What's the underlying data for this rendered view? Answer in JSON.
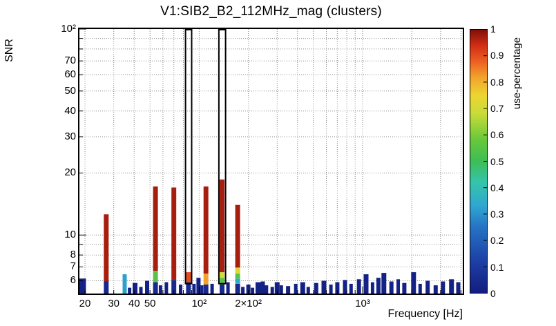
{
  "title": "V1:SIB2_B2_112MHz_mag (clusters)",
  "axes": {
    "x_label": "Frequency [Hz]",
    "y_label": "SNR"
  },
  "colorbar": {
    "label": "use-percentage",
    "min": 0,
    "max": 1,
    "tick_labels": [
      "0",
      "0.1",
      "0.2",
      "0.3",
      "0.4",
      "0.5",
      "0.6",
      "0.7",
      "0.8",
      "0.9",
      "1"
    ]
  },
  "chart_data": {
    "type": "bar",
    "title": "V1:SIB2_B2_112MHz_mag (clusters)",
    "xlabel": "Frequency [Hz]",
    "ylabel": "SNR",
    "zlabel": "use-percentage",
    "x_scale": "log",
    "y_scale": "log",
    "xlim": [
      18.5,
      4100
    ],
    "ylim": [
      5.2,
      100
    ],
    "grid": true,
    "x_ticks": [
      {
        "v": 20,
        "label": "20"
      },
      {
        "v": 30,
        "label": "30"
      },
      {
        "v": 40,
        "label": "40"
      },
      {
        "v": 50,
        "label": "50"
      },
      {
        "v": 100,
        "label": "10²"
      },
      {
        "v": 200,
        "label": "2×10²"
      },
      {
        "v": 1000,
        "label": "10³"
      }
    ],
    "y_ticks": [
      {
        "v": 6,
        "label": "6"
      },
      {
        "v": 7,
        "label": "7"
      },
      {
        "v": 8,
        "label": "8"
      },
      {
        "v": 10,
        "label": "10"
      },
      {
        "v": 20,
        "label": "20"
      },
      {
        "v": 30,
        "label": "30"
      },
      {
        "v": 40,
        "label": "40"
      },
      {
        "v": 50,
        "label": "50"
      },
      {
        "v": 60,
        "label": "60"
      },
      {
        "v": 70,
        "label": "70"
      },
      {
        "v": 100,
        "label": "10²"
      }
    ],
    "grid_x": [
      20,
      30,
      40,
      50,
      60,
      70,
      80,
      90,
      100,
      200,
      300,
      400,
      500,
      600,
      700,
      800,
      900,
      1000,
      2000,
      3000,
      4000
    ],
    "grid_y": [
      6,
      7,
      8,
      9,
      10,
      20,
      30,
      40,
      50,
      60,
      70,
      80,
      90,
      100
    ],
    "palette": [
      {
        "v": 0.0,
        "c": "#131c7f"
      },
      {
        "v": 0.12,
        "c": "#1d3fa5"
      },
      {
        "v": 0.25,
        "c": "#2673c4"
      },
      {
        "v": 0.33,
        "c": "#2fa6cf"
      },
      {
        "v": 0.42,
        "c": "#36c4ab"
      },
      {
        "v": 0.5,
        "c": "#3dbe56"
      },
      {
        "v": 0.58,
        "c": "#67c73b"
      },
      {
        "v": 0.68,
        "c": "#c8dc38"
      },
      {
        "v": 0.75,
        "c": "#edd531"
      },
      {
        "v": 0.82,
        "c": "#f2a12c"
      },
      {
        "v": 0.88,
        "c": "#ec5e21"
      },
      {
        "v": 0.94,
        "c": "#d02d14"
      },
      {
        "v": 1.0,
        "c": "#7d0e07"
      }
    ],
    "outlined_boxes": [
      {
        "f0": 82.5,
        "f1": 90,
        "snr0": 5.85,
        "snr1": 100
      },
      {
        "f0": 132,
        "f1": 145,
        "snr0": 5.85,
        "snr1": 100
      }
    ],
    "clusters": [
      {
        "f": 19.3,
        "w": 10,
        "segments": [
          {
            "snr0": 5.2,
            "snr1": 6.15,
            "use": 0.02
          }
        ]
      },
      {
        "f": 27,
        "w": 7,
        "segments": [
          {
            "snr0": 5.2,
            "snr1": 5.95,
            "use": 0.04
          },
          {
            "snr0": 5.95,
            "snr1": 12.6,
            "use": 0.97
          }
        ]
      },
      {
        "f": 35,
        "w": 6,
        "segments": [
          {
            "snr0": 5.2,
            "snr1": 6.45,
            "use": 0.32
          }
        ]
      },
      {
        "f": 37.5,
        "w": 5,
        "segments": [
          {
            "snr0": 5.2,
            "snr1": 5.55,
            "use": 0.02
          }
        ]
      },
      {
        "f": 40.5,
        "w": 7,
        "segments": [
          {
            "snr0": 5.2,
            "snr1": 5.85,
            "use": 0.02
          }
        ]
      },
      {
        "f": 44,
        "w": 5,
        "segments": [
          {
            "snr0": 5.2,
            "snr1": 5.6,
            "use": 0.02
          }
        ]
      },
      {
        "f": 48,
        "w": 6,
        "segments": [
          {
            "snr0": 5.2,
            "snr1": 6.0,
            "use": 0.02
          }
        ]
      },
      {
        "f": 54,
        "w": 7,
        "segments": [
          {
            "snr0": 5.2,
            "snr1": 5.9,
            "use": 0.05
          },
          {
            "snr0": 5.9,
            "snr1": 6.7,
            "use": 0.55
          },
          {
            "snr0": 6.7,
            "snr1": 17.2,
            "use": 0.97
          }
        ]
      },
      {
        "f": 58,
        "w": 5,
        "segments": [
          {
            "snr0": 5.2,
            "snr1": 5.7,
            "use": 0.02
          }
        ]
      },
      {
        "f": 63,
        "w": 5,
        "segments": [
          {
            "snr0": 5.2,
            "snr1": 5.9,
            "use": 0.02
          }
        ]
      },
      {
        "f": 70,
        "w": 7,
        "segments": [
          {
            "snr0": 5.2,
            "snr1": 6.05,
            "use": 0.05
          },
          {
            "snr0": 6.05,
            "snr1": 17.0,
            "use": 0.97
          }
        ]
      },
      {
        "f": 77,
        "w": 5,
        "segments": [
          {
            "snr0": 5.2,
            "snr1": 5.75,
            "use": 0.02
          }
        ]
      },
      {
        "f": 86,
        "w": 7,
        "segments": [
          {
            "snr0": 5.2,
            "snr1": 5.9,
            "use": 0.05
          },
          {
            "snr0": 5.9,
            "snr1": 6.6,
            "use": 0.9
          }
        ]
      },
      {
        "f": 93,
        "w": 5,
        "segments": [
          {
            "snr0": 5.2,
            "snr1": 5.8,
            "use": 0.02
          }
        ]
      },
      {
        "f": 99,
        "w": 6,
        "segments": [
          {
            "snr0": 5.2,
            "snr1": 6.2,
            "use": 0.02
          }
        ]
      },
      {
        "f": 104,
        "w": 4,
        "segments": [
          {
            "snr0": 5.2,
            "snr1": 5.7,
            "use": 0.02
          }
        ]
      },
      {
        "f": 110,
        "w": 7,
        "segments": [
          {
            "snr0": 5.2,
            "snr1": 5.75,
            "use": 0.05
          },
          {
            "snr0": 5.75,
            "snr1": 6.5,
            "use": 0.82
          },
          {
            "snr0": 6.5,
            "snr1": 17.2,
            "use": 0.97
          }
        ]
      },
      {
        "f": 120,
        "w": 5,
        "segments": [
          {
            "snr0": 5.2,
            "snr1": 5.8,
            "use": 0.02
          }
        ]
      },
      {
        "f": 138,
        "w": 7,
        "segments": [
          {
            "snr0": 5.2,
            "snr1": 5.75,
            "use": 0.05
          },
          {
            "snr0": 5.75,
            "snr1": 6.2,
            "use": 0.55
          },
          {
            "snr0": 6.2,
            "snr1": 6.6,
            "use": 0.7
          },
          {
            "snr0": 6.6,
            "snr1": 18.6,
            "use": 0.97
          }
        ]
      },
      {
        "f": 150,
        "w": 5,
        "segments": [
          {
            "snr0": 5.2,
            "snr1": 5.9,
            "use": 0.02
          }
        ]
      },
      {
        "f": 172,
        "w": 7,
        "segments": [
          {
            "snr0": 5.2,
            "snr1": 5.8,
            "use": 0.05
          },
          {
            "snr0": 5.8,
            "snr1": 6.15,
            "use": 0.35
          },
          {
            "snr0": 6.15,
            "snr1": 6.5,
            "use": 0.55
          },
          {
            "snr0": 6.5,
            "snr1": 6.95,
            "use": 0.72
          },
          {
            "snr0": 6.95,
            "snr1": 14.0,
            "use": 0.97
          }
        ]
      },
      {
        "f": 185,
        "w": 5,
        "segments": [
          {
            "snr0": 5.2,
            "snr1": 5.6,
            "use": 0.02
          }
        ]
      },
      {
        "f": 200,
        "w": 6,
        "segments": [
          {
            "snr0": 5.2,
            "snr1": 5.75,
            "use": 0.02
          }
        ]
      },
      {
        "f": 212,
        "w": 5,
        "segments": [
          {
            "snr0": 5.2,
            "snr1": 5.55,
            "use": 0.02
          }
        ]
      },
      {
        "f": 230,
        "w": 8,
        "segments": [
          {
            "snr0": 5.2,
            "snr1": 5.9,
            "use": 0.02
          }
        ]
      },
      {
        "f": 245,
        "w": 6,
        "segments": [
          {
            "snr0": 5.2,
            "snr1": 5.95,
            "use": 0.02
          }
        ]
      },
      {
        "f": 258,
        "w": 5,
        "segments": [
          {
            "snr0": 5.2,
            "snr1": 5.7,
            "use": 0.02
          }
        ]
      },
      {
        "f": 280,
        "w": 5,
        "segments": [
          {
            "snr0": 5.2,
            "snr1": 5.6,
            "use": 0.02
          }
        ]
      },
      {
        "f": 300,
        "w": 7,
        "segments": [
          {
            "snr0": 5.2,
            "snr1": 5.9,
            "use": 0.02
          }
        ]
      },
      {
        "f": 318,
        "w": 5,
        "segments": [
          {
            "snr0": 5.2,
            "snr1": 5.7,
            "use": 0.02
          }
        ]
      },
      {
        "f": 350,
        "w": 6,
        "segments": [
          {
            "snr0": 5.2,
            "snr1": 5.65,
            "use": 0.02
          }
        ]
      },
      {
        "f": 390,
        "w": 5,
        "segments": [
          {
            "snr0": 5.2,
            "snr1": 5.8,
            "use": 0.02
          }
        ]
      },
      {
        "f": 430,
        "w": 7,
        "segments": [
          {
            "snr0": 5.2,
            "snr1": 5.9,
            "use": 0.02
          }
        ]
      },
      {
        "f": 465,
        "w": 5,
        "segments": [
          {
            "snr0": 5.2,
            "snr1": 5.6,
            "use": 0.02
          }
        ]
      },
      {
        "f": 520,
        "w": 6,
        "segments": [
          {
            "snr0": 5.2,
            "snr1": 5.85,
            "use": 0.02
          }
        ]
      },
      {
        "f": 580,
        "w": 7,
        "segments": [
          {
            "snr0": 5.2,
            "snr1": 6.0,
            "use": 0.02
          }
        ]
      },
      {
        "f": 640,
        "w": 5,
        "segments": [
          {
            "snr0": 5.2,
            "snr1": 5.75,
            "use": 0.02
          }
        ]
      },
      {
        "f": 700,
        "w": 6,
        "segments": [
          {
            "snr0": 5.2,
            "snr1": 5.9,
            "use": 0.02
          }
        ]
      },
      {
        "f": 780,
        "w": 6,
        "segments": [
          {
            "snr0": 5.2,
            "snr1": 6.05,
            "use": 0.02
          }
        ]
      },
      {
        "f": 850,
        "w": 5,
        "segments": [
          {
            "snr0": 5.2,
            "snr1": 5.8,
            "use": 0.02
          }
        ]
      },
      {
        "f": 950,
        "w": 6,
        "segments": [
          {
            "snr0": 5.2,
            "snr1": 6.1,
            "use": 0.02
          }
        ]
      },
      {
        "f": 1050,
        "w": 7,
        "segments": [
          {
            "snr0": 5.2,
            "snr1": 6.45,
            "use": 0.02
          }
        ]
      },
      {
        "f": 1150,
        "w": 5,
        "segments": [
          {
            "snr0": 5.2,
            "snr1": 5.9,
            "use": 0.02
          }
        ]
      },
      {
        "f": 1250,
        "w": 6,
        "segments": [
          {
            "snr0": 5.2,
            "snr1": 6.2,
            "use": 0.02
          }
        ]
      },
      {
        "f": 1350,
        "w": 7,
        "segments": [
          {
            "snr0": 5.2,
            "snr1": 6.55,
            "use": 0.02
          }
        ]
      },
      {
        "f": 1500,
        "w": 6,
        "segments": [
          {
            "snr0": 5.2,
            "snr1": 5.95,
            "use": 0.02
          }
        ]
      },
      {
        "f": 1650,
        "w": 5,
        "segments": [
          {
            "snr0": 5.2,
            "snr1": 6.1,
            "use": 0.02
          }
        ]
      },
      {
        "f": 1800,
        "w": 6,
        "segments": [
          {
            "snr0": 5.2,
            "snr1": 5.85,
            "use": 0.02
          }
        ]
      },
      {
        "f": 2050,
        "w": 7,
        "segments": [
          {
            "snr0": 5.2,
            "snr1": 6.6,
            "use": 0.02
          }
        ]
      },
      {
        "f": 2250,
        "w": 5,
        "segments": [
          {
            "snr0": 5.2,
            "snr1": 5.8,
            "use": 0.02
          }
        ]
      },
      {
        "f": 2500,
        "w": 6,
        "segments": [
          {
            "snr0": 5.2,
            "snr1": 6.0,
            "use": 0.02
          }
        ]
      },
      {
        "f": 2800,
        "w": 6,
        "segments": [
          {
            "snr0": 5.2,
            "snr1": 5.7,
            "use": 0.02
          }
        ]
      },
      {
        "f": 3100,
        "w": 6,
        "segments": [
          {
            "snr0": 5.2,
            "snr1": 5.95,
            "use": 0.02
          }
        ]
      },
      {
        "f": 3500,
        "w": 7,
        "segments": [
          {
            "snr0": 5.2,
            "snr1": 6.1,
            "use": 0.02
          }
        ]
      },
      {
        "f": 3850,
        "w": 6,
        "segments": [
          {
            "snr0": 5.2,
            "snr1": 5.9,
            "use": 0.02
          }
        ]
      }
    ]
  }
}
